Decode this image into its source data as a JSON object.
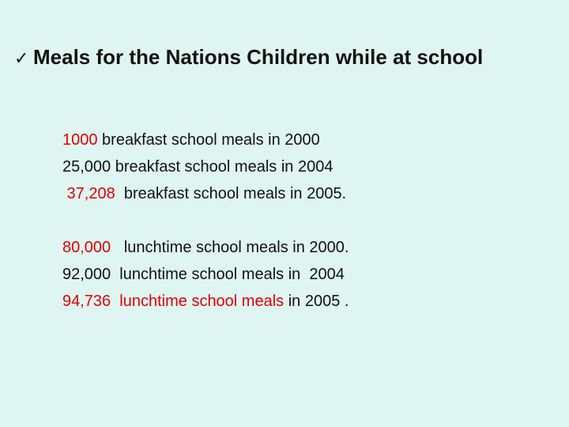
{
  "slide": {
    "check_glyph": "✓",
    "title": "Meals for the Nations Children while at school"
  },
  "breakfast": [
    {
      "red": "1000",
      "black": " breakfast school meals in 2000"
    },
    {
      "red": "",
      "black": "25,000 breakfast school meals in 2004"
    },
    {
      "red": " 37,208",
      "black": "  breakfast school meals in 2005."
    }
  ],
  "lunch": [
    {
      "red": "80,000",
      "black": "   lunchtime school meals in 2000."
    },
    {
      "red": "",
      "black": "92,000  lunchtime school meals in  2004"
    },
    {
      "red": "94,736  lunchtime school meals",
      "black": " in 2005 ."
    }
  ],
  "colors": {
    "background": "#dff5f1",
    "accent": "#e00000",
    "text": "#111111"
  }
}
